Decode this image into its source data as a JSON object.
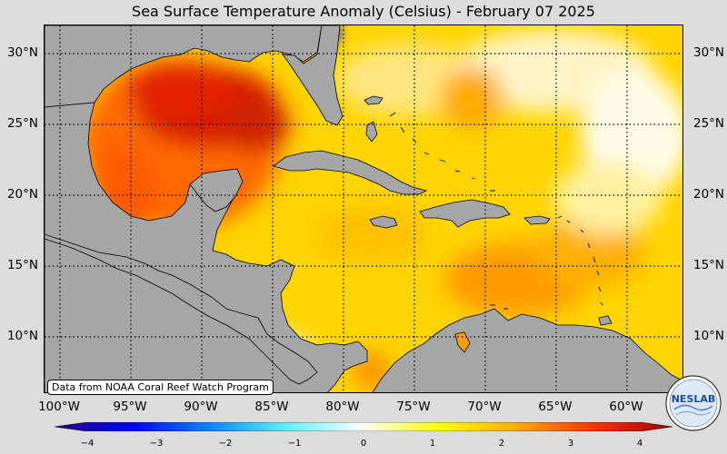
{
  "title": "Sea Surface Temperature Anomaly (Celsius) - February 07 2025",
  "latitude_labels": [
    "30°N",
    "25°N",
    "20°N",
    "15°N",
    "10°N"
  ],
  "longitude_labels": [
    "100°W",
    "95°W",
    "90°W",
    "85°W",
    "80°W",
    "75°W",
    "70°W",
    "65°W",
    "60°W"
  ],
  "credit": "Data from NOAA Coral Reef Watch Program",
  "colorbar": {
    "ticks": [
      "−4",
      "−3",
      "−2",
      "−1",
      "0",
      "1",
      "2",
      "3",
      "4"
    ],
    "colors": [
      "#2a0080",
      "#0000ff",
      "#0a86ff",
      "#5ff0ff",
      "#ffffff",
      "#ffff00",
      "#ffaa00",
      "#ff3000",
      "#a00000"
    ]
  },
  "logo": {
    "text": "NESLAB"
  },
  "palette": {
    "land": "#a6a6a6",
    "background": "#dcdcdc",
    "ocean_base": "#ffd400"
  }
}
